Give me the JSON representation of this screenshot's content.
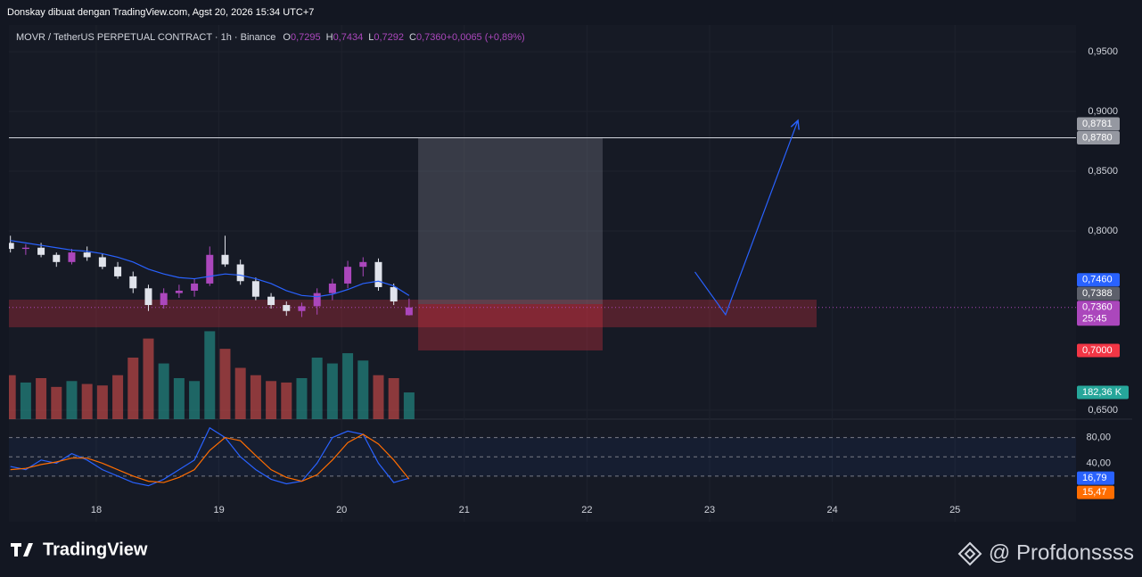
{
  "header": "Donskay dibuat dengan TradingView.com, Agst 20, 2026 15:34 UTC+7",
  "chart_data": {
    "type": "candlestick",
    "symbol": "MOVR / TetherUS PERPETUAL CONTRACT · 1h · Binance",
    "legend": [
      {
        "key": "O",
        "value": "0,7295"
      },
      {
        "key": "H",
        "value": "0,7434"
      },
      {
        "key": "L",
        "value": "0,7292"
      },
      {
        "key": "C",
        "value": "0,7360"
      },
      {
        "key": "",
        "value": "+0,0065 (+0,89%)"
      }
    ],
    "x": [
      17.3,
      17.425,
      17.55,
      17.675,
      17.8,
      17.925,
      18.05,
      18.175,
      18.3,
      18.425,
      18.55,
      18.675,
      18.8,
      18.925,
      19.05,
      19.175,
      19.3,
      19.425,
      19.55,
      19.675,
      19.8,
      19.925,
      20.05,
      20.175,
      20.3,
      20.425,
      20.55
    ],
    "open": [
      0.79,
      0.785,
      0.786,
      0.78,
      0.774,
      0.782,
      0.778,
      0.77,
      0.762,
      0.752,
      0.738,
      0.748,
      0.75,
      0.756,
      0.78,
      0.772,
      0.758,
      0.745,
      0.738,
      0.733,
      0.737,
      0.748,
      0.756,
      0.77,
      0.774,
      0.753,
      0.7295
    ],
    "high": [
      0.796,
      0.789,
      0.79,
      0.782,
      0.785,
      0.787,
      0.781,
      0.774,
      0.766,
      0.755,
      0.752,
      0.755,
      0.76,
      0.787,
      0.796,
      0.776,
      0.761,
      0.748,
      0.741,
      0.74,
      0.752,
      0.76,
      0.775,
      0.778,
      0.777,
      0.756,
      0.7434
    ],
    "low": [
      0.782,
      0.78,
      0.778,
      0.77,
      0.772,
      0.775,
      0.768,
      0.76,
      0.748,
      0.733,
      0.735,
      0.744,
      0.745,
      0.754,
      0.77,
      0.755,
      0.742,
      0.735,
      0.729,
      0.728,
      0.73,
      0.742,
      0.752,
      0.762,
      0.75,
      0.738,
      0.7292
    ],
    "close": [
      0.785,
      0.786,
      0.78,
      0.774,
      0.782,
      0.778,
      0.77,
      0.762,
      0.752,
      0.738,
      0.748,
      0.75,
      0.756,
      0.78,
      0.772,
      0.758,
      0.745,
      0.738,
      0.733,
      0.737,
      0.748,
      0.756,
      0.77,
      0.774,
      0.753,
      0.741,
      0.736
    ],
    "up_color": "#ab47bc",
    "down_color": "#e0e3eb",
    "ma": {
      "color": "#2962ff",
      "values": [
        0.792,
        0.79,
        0.788,
        0.786,
        0.784,
        0.783,
        0.781,
        0.778,
        0.774,
        0.768,
        0.764,
        0.761,
        0.76,
        0.762,
        0.764,
        0.763,
        0.76,
        0.756,
        0.75,
        0.746,
        0.745,
        0.747,
        0.751,
        0.756,
        0.758,
        0.754,
        0.746
      ]
    },
    "xlim": [
      17.2878,
      25.9869
    ],
    "xticks": [
      18,
      19,
      20,
      21,
      22,
      23,
      24,
      25
    ],
    "ylim": [
      0.6425,
      0.9724
    ],
    "yticks": [
      {
        "value": 0.95,
        "label": "0,9500"
      },
      {
        "value": 0.9,
        "label": "0,9000"
      },
      {
        "value": 0.85,
        "label": "0,8500"
      },
      {
        "value": 0.8,
        "label": "0,8000"
      },
      {
        "value": 0.65,
        "label": "0,6500"
      }
    ],
    "hline": 0.878,
    "markers": [
      {
        "value": 0.8781,
        "label": "0,8781",
        "color": "#9598a1"
      },
      {
        "value": 0.878,
        "label": "0,8780",
        "color": "#9598a1"
      },
      {
        "value": 0.746,
        "label": "0,7460",
        "color": "#2962ff"
      },
      {
        "value": 0.7388,
        "label": "0,7388",
        "color": "#5d606b"
      },
      {
        "value": 0.736,
        "label": "0,7360",
        "color": "#ab47bc",
        "sub": "25:45"
      },
      {
        "value": 0.7,
        "label": "0,7000",
        "color": "#f23645"
      }
    ],
    "zone": {
      "x": [
        17.2878,
        23.872
      ],
      "y": [
        0.7425,
        0.7194
      ]
    },
    "position": {
      "x": [
        20.624,
        22.128
      ],
      "entry": 0.7388,
      "target": 0.878,
      "stop": 0.7
    },
    "projection": {
      "x": [
        22.88,
        23.13,
        23.72
      ],
      "y": [
        0.7657,
        0.7299,
        0.8925
      ]
    },
    "volume": {
      "values": [
        300,
        250,
        280,
        220,
        260,
        240,
        230,
        300,
        420,
        550,
        380,
        280,
        260,
        600,
        480,
        350,
        300,
        260,
        250,
        280,
        420,
        380,
        450,
        400,
        300,
        280,
        182.36
      ],
      "ylim": [
        0,
        2690
      ],
      "last": {
        "value": 182.36,
        "label": "182,36 K"
      }
    },
    "oscillator": {
      "ylim": [
        -51,
        108.6
      ],
      "yticks": [
        {
          "value": 80,
          "label": "80,00"
        },
        {
          "value": 40,
          "label": "40,00"
        }
      ],
      "bands": [
        80,
        50,
        20
      ],
      "series": [
        {
          "color": "#2962ff",
          "last_label": "16,79",
          "values": [
            35,
            30,
            45,
            40,
            55,
            45,
            30,
            20,
            10,
            5,
            15,
            30,
            45,
            95,
            80,
            50,
            30,
            15,
            8,
            12,
            40,
            80,
            90,
            85,
            40,
            10,
            16.79
          ]
        },
        {
          "color": "#ff6d00",
          "last_label": "15,47",
          "values": [
            30,
            32,
            38,
            42,
            48,
            48,
            40,
            30,
            20,
            12,
            10,
            18,
            30,
            60,
            80,
            75,
            52,
            30,
            18,
            12,
            22,
            45,
            72,
            85,
            70,
            45,
            15.47
          ]
        }
      ]
    }
  },
  "footer": {
    "brand": "TradingView",
    "author": "@ Profdonssss"
  }
}
